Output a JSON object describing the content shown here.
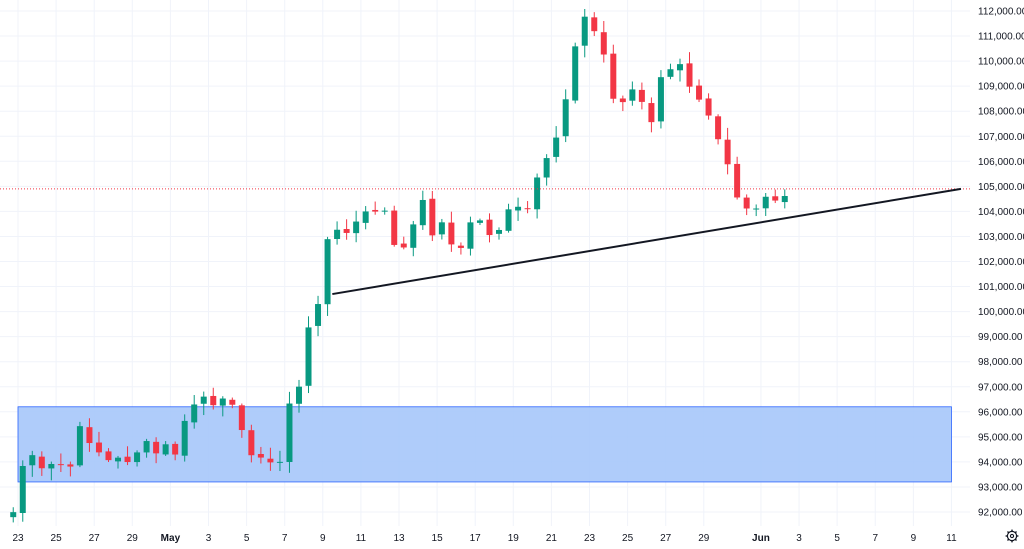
{
  "chart_data": {
    "type": "candlestick",
    "price_unit": "USD",
    "y_ticks": [
      92000,
      93000,
      94000,
      95000,
      96000,
      97000,
      98000,
      99000,
      100000,
      101000,
      102000,
      103000,
      104000,
      105000,
      106000,
      107000,
      108000,
      109000,
      110000,
      111000,
      112000
    ],
    "y_tick_labels": [
      "92,000.00",
      "93,000.00",
      "94,000.00",
      "95,000.00",
      "96,000.00",
      "97,000.00",
      "98,000.00",
      "99,000.00",
      "100,000.00",
      "101,000.00",
      "102,000.00",
      "103,000.00",
      "104,000.00",
      "105,000.00",
      "106,000.00",
      "107,000.00",
      "108,000.00",
      "109,000.00",
      "110,000.00",
      "111,000.00",
      "112,000.00"
    ],
    "x_tick_labels": [
      "23",
      "25",
      "27",
      "29",
      "May",
      "3",
      "5",
      "7",
      "9",
      "11",
      "13",
      "15",
      "17",
      "19",
      "21",
      "23",
      "25",
      "27",
      "29",
      "Jun",
      "3",
      "5",
      "7",
      "9",
      "11"
    ],
    "x_tick_dates": [
      "2025-04-23",
      "2025-04-25",
      "2025-04-27",
      "2025-04-29",
      "2025-05-01",
      "2025-05-03",
      "2025-05-05",
      "2025-05-07",
      "2025-05-09",
      "2025-05-11",
      "2025-05-13",
      "2025-05-15",
      "2025-05-17",
      "2025-05-19",
      "2025-05-21",
      "2025-05-23",
      "2025-05-25",
      "2025-05-27",
      "2025-05-29",
      "2025-06-01",
      "2025-06-03",
      "2025-06-05",
      "2025-06-07",
      "2025-06-09",
      "2025-06-11"
    ],
    "last_price_line": 104900,
    "support_zone": {
      "from_date": "2025-04-23",
      "to_date": "2025-06-11",
      "low": 93200,
      "high": 96200,
      "color": "#a8c8fa"
    },
    "trendline": {
      "start": {
        "date": "2025-05-09T12:00",
        "price": 100700
      },
      "end": {
        "date": "2025-06-11T12:00",
        "price": 104900
      }
    },
    "candle_anchors": [
      [
        "2025-04-22T18:00",
        92000
      ],
      [
        "2025-04-23T06:00",
        93800
      ],
      [
        "2025-04-23T18:00",
        94500
      ],
      [
        "2025-04-24T12:00",
        93600
      ],
      [
        "2025-04-25T00:00",
        94300
      ],
      [
        "2025-04-25T12:00",
        93500
      ],
      [
        "2025-04-26T06:00",
        95200
      ],
      [
        "2025-04-26T18:00",
        94700
      ],
      [
        "2025-04-27T12:00",
        94300
      ],
      [
        "2025-04-28T06:00",
        94000
      ],
      [
        "2025-04-28T18:00",
        93900
      ],
      [
        "2025-04-29T12:00",
        95000
      ],
      [
        "2025-04-30T06:00",
        94500
      ],
      [
        "2025-04-30T18:00",
        94600
      ],
      [
        "2025-05-01T06:00",
        94500
      ],
      [
        "2025-05-01T18:00",
        95600
      ],
      [
        "2025-05-02T06:00",
        96300
      ],
      [
        "2025-05-02T18:00",
        96800
      ],
      [
        "2025-05-03T12:00",
        96400
      ],
      [
        "2025-05-04T06:00",
        96000
      ],
      [
        "2025-05-04T18:00",
        95500
      ],
      [
        "2025-05-05T06:00",
        94300
      ],
      [
        "2025-05-05T18:00",
        93900
      ],
      [
        "2025-05-06T12:00",
        94300
      ],
      [
        "2025-05-07T00:00",
        93800
      ],
      [
        "2025-05-07T06:00",
        96300
      ],
      [
        "2025-05-07T18:00",
        96900
      ],
      [
        "2025-05-08T06:00",
        99500
      ],
      [
        "2025-05-08T18:00",
        100500
      ],
      [
        "2025-05-09T06:00",
        102600
      ],
      [
        "2025-05-09T18:00",
        103300
      ],
      [
        "2025-05-10T12:00",
        103300
      ],
      [
        "2025-05-11T06:00",
        104100
      ],
      [
        "2025-05-11T18:00",
        104200
      ],
      [
        "2025-05-12T12:00",
        103700
      ],
      [
        "2025-05-13T00:00",
        101800
      ],
      [
        "2025-05-13T12:00",
        103500
      ],
      [
        "2025-05-14T06:00",
        104200
      ],
      [
        "2025-05-14T18:00",
        103200
      ],
      [
        "2025-05-15T12:00",
        103400
      ],
      [
        "2025-05-16T00:00",
        102000
      ],
      [
        "2025-05-16T12:00",
        103400
      ],
      [
        "2025-05-17T06:00",
        103700
      ],
      [
        "2025-05-17T18:00",
        102900
      ],
      [
        "2025-05-18T12:00",
        103300
      ],
      [
        "2025-05-19T00:00",
        105300
      ],
      [
        "2025-05-19T12:00",
        103400
      ],
      [
        "2025-05-20T06:00",
        105600
      ],
      [
        "2025-05-20T18:00",
        106400
      ],
      [
        "2025-05-21T12:00",
        107300
      ],
      [
        "2025-05-22T06:00",
        110500
      ],
      [
        "2025-05-22T18:00",
        111500
      ],
      [
        "2025-05-23T12:00",
        111200
      ],
      [
        "2025-05-24T06:00",
        108500
      ],
      [
        "2025-05-24T18:00",
        108400
      ],
      [
        "2025-05-25T12:00",
        108800
      ],
      [
        "2025-05-26T06:00",
        107600
      ],
      [
        "2025-05-26T18:00",
        109500
      ],
      [
        "2025-05-27T12:00",
        110000
      ],
      [
        "2025-05-28T06:00",
        109200
      ],
      [
        "2025-05-28T18:00",
        108600
      ],
      [
        "2025-05-29T12:00",
        107200
      ],
      [
        "2025-05-30T06:00",
        105600
      ],
      [
        "2025-05-30T18:00",
        104300
      ],
      [
        "2025-05-31T12:00",
        103700
      ],
      [
        "2025-06-01T06:00",
        104500
      ],
      [
        "2025-06-01T18:00",
        104400
      ],
      [
        "2025-06-02T00:00",
        105100
      ],
      [
        "2025-06-02T06:00",
        104900
      ]
    ]
  }
}
